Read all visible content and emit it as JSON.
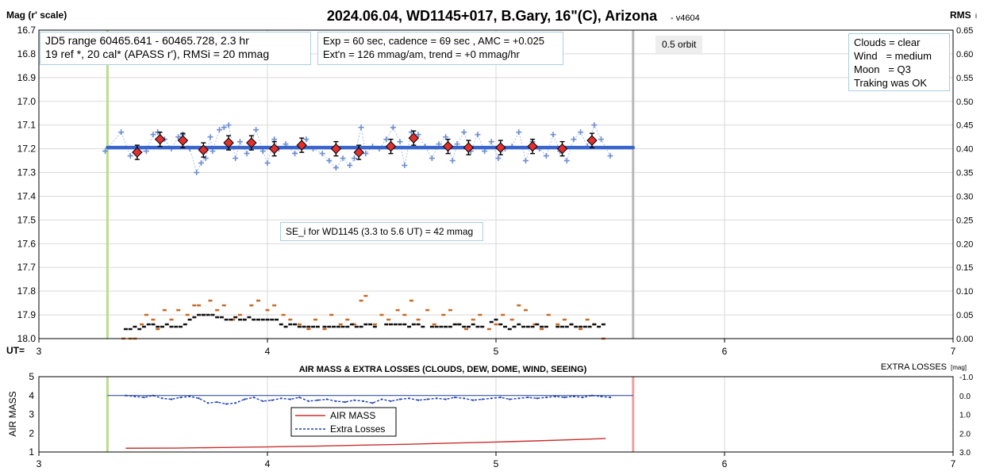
{
  "chart_data": [
    {
      "type": "scatter",
      "title": "2024.06.04, WD1145+017, B.Gary, 16\"(C), Arizona",
      "version_tag": "- v4604",
      "ylabel": "Mag (r' scale)",
      "y2label": "RMS",
      "y2label_suffix": "i",
      "x_axis_prefix": "UT=",
      "xlim": [
        3,
        7
      ],
      "ylim": [
        18.0,
        16.7
      ],
      "y2lim": [
        0.0,
        0.65
      ],
      "x_ticks": [
        3,
        4,
        5,
        6,
        7
      ],
      "y_ticks": [
        "16.7",
        "16.8",
        "16.9",
        "17.0",
        "17.1",
        "17.2",
        "17.3",
        "17.4",
        "17.5",
        "17.6",
        "17.7",
        "17.8",
        "17.9",
        "18.0"
      ],
      "y2_ticks": [
        "0.65",
        "0.60",
        "0.55",
        "0.50",
        "0.45",
        "0.40",
        "0.35",
        "0.30",
        "0.25",
        "0.20",
        "0.15",
        "0.10",
        "0.05",
        "0.00"
      ],
      "grid": true,
      "vertical_markers": [
        {
          "x": 3.3,
          "color": "#b9dc8c"
        },
        {
          "x": 5.6,
          "color": "#b8b8b8"
        }
      ],
      "model_line": {
        "x_start": 3.3,
        "x_end": 5.6,
        "y": 17.195,
        "color": "#3a66cc"
      },
      "series": [
        {
          "marker": "plus",
          "color": "#6f8fd0",
          "x": [
            3.29,
            3.36,
            3.4,
            3.43,
            3.47,
            3.5,
            3.52,
            3.55,
            3.58,
            3.61,
            3.63,
            3.66,
            3.69,
            3.71,
            3.73,
            3.75,
            3.76,
            3.79,
            3.81,
            3.83,
            3.86,
            3.88,
            3.91,
            3.93,
            3.95,
            3.98,
            4.0,
            4.03,
            4.05,
            4.08,
            4.12,
            4.15,
            4.17,
            4.2,
            4.24,
            4.27,
            4.3,
            4.33,
            4.36,
            4.38,
            4.41,
            4.43,
            4.46,
            4.49,
            4.52,
            4.55,
            4.58,
            4.6,
            4.63,
            4.66,
            4.69,
            4.72,
            4.75,
            4.78,
            4.81,
            4.83,
            4.86,
            4.89,
            4.92,
            4.95,
            4.98,
            5.01,
            5.04,
            5.07,
            5.1,
            5.13,
            5.16,
            5.19,
            5.22,
            5.25,
            5.28,
            5.31,
            5.34,
            5.37,
            5.4,
            5.43,
            5.46,
            5.5
          ],
          "y": [
            17.21,
            17.13,
            17.23,
            17.21,
            17.21,
            17.14,
            17.13,
            17.16,
            17.2,
            17.15,
            17.14,
            17.2,
            17.3,
            17.26,
            17.24,
            17.15,
            17.21,
            17.12,
            17.11,
            17.1,
            17.24,
            17.17,
            17.22,
            17.18,
            17.12,
            17.21,
            17.26,
            17.16,
            17.2,
            17.18,
            17.22,
            17.19,
            17.16,
            17.2,
            17.22,
            17.25,
            17.28,
            17.24,
            17.27,
            17.24,
            17.11,
            17.22,
            17.19,
            17.2,
            17.16,
            17.11,
            17.17,
            17.27,
            17.13,
            17.14,
            17.19,
            17.24,
            17.18,
            17.15,
            17.25,
            17.18,
            17.13,
            17.21,
            17.14,
            17.21,
            17.17,
            17.24,
            17.2,
            17.19,
            17.13,
            17.25,
            17.17,
            17.2,
            17.23,
            17.14,
            17.21,
            17.25,
            17.16,
            17.13,
            17.19,
            17.1,
            17.16,
            17.23
          ]
        },
        {
          "marker": "diamond",
          "color": "#e03030",
          "x": [
            3.43,
            3.53,
            3.63,
            3.72,
            3.83,
            3.93,
            4.03,
            4.15,
            4.3,
            4.4,
            4.54,
            4.64,
            4.79,
            4.88,
            5.02,
            5.16,
            5.29,
            5.42
          ],
          "y": [
            17.215,
            17.16,
            17.165,
            17.205,
            17.175,
            17.175,
            17.2,
            17.185,
            17.2,
            17.215,
            17.19,
            17.155,
            17.19,
            17.195,
            17.195,
            17.19,
            17.2,
            17.165
          ]
        },
        {
          "marker": "dash",
          "color": "#c76a28",
          "axis": "right",
          "x": [
            3.37,
            3.4,
            3.42,
            3.45,
            3.47,
            3.5,
            3.52,
            3.55,
            3.58,
            3.61,
            3.65,
            3.68,
            3.7,
            3.72,
            3.75,
            3.78,
            3.81,
            3.85,
            3.88,
            3.9,
            3.93,
            3.96,
            4.0,
            4.03,
            4.07,
            4.1,
            4.14,
            4.18,
            4.21,
            4.25,
            4.28,
            4.32,
            4.35,
            4.38,
            4.41,
            4.43,
            4.47,
            4.5,
            4.53,
            4.57,
            4.6,
            4.63,
            4.66,
            4.7,
            4.73,
            4.77,
            4.8,
            4.83,
            4.87,
            4.9,
            4.93,
            4.97,
            5.0,
            5.03,
            5.07,
            5.1,
            5.13,
            5.17,
            5.2,
            5.23,
            5.27,
            5.3,
            5.33,
            5.37,
            5.4,
            5.43,
            5.47
          ],
          "y": [
            0.0,
            0.0,
            0.0,
            0.03,
            0.05,
            0.04,
            0.02,
            0.06,
            0.04,
            0.06,
            0.05,
            0.07,
            0.07,
            0.05,
            0.08,
            0.06,
            0.07,
            0.04,
            0.05,
            0.04,
            0.07,
            0.08,
            0.06,
            0.07,
            0.05,
            0.04,
            0.03,
            0.02,
            0.04,
            0.02,
            0.05,
            0.03,
            0.04,
            0.03,
            0.08,
            0.09,
            0.03,
            0.05,
            0.04,
            0.06,
            0.05,
            0.08,
            0.04,
            0.06,
            0.03,
            0.05,
            0.06,
            0.03,
            0.02,
            0.04,
            0.05,
            0.02,
            0.03,
            0.05,
            0.04,
            0.07,
            0.06,
            0.03,
            0.02,
            0.05,
            0.03,
            0.04,
            0.03,
            0.02,
            0.04,
            0.03,
            0.0
          ]
        },
        {
          "marker": "dash",
          "color": "#111111",
          "axis": "right",
          "x": [
            3.38,
            3.4,
            3.42,
            3.44,
            3.46,
            3.48,
            3.5,
            3.52,
            3.54,
            3.56,
            3.58,
            3.6,
            3.62,
            3.64,
            3.66,
            3.68,
            3.7,
            3.72,
            3.74,
            3.76,
            3.78,
            3.8,
            3.82,
            3.84,
            3.86,
            3.88,
            3.9,
            3.92,
            3.94,
            3.96,
            3.98,
            4.0,
            4.02,
            4.04,
            4.06,
            4.08,
            4.1,
            4.12,
            4.14,
            4.16,
            4.18,
            4.2,
            4.22,
            4.25,
            4.27,
            4.29,
            4.31,
            4.33,
            4.35,
            4.37,
            4.39,
            4.41,
            4.43,
            4.45,
            4.47,
            4.52,
            4.54,
            4.56,
            4.58,
            4.6,
            4.62,
            4.64,
            4.66,
            4.68,
            4.72,
            4.74,
            4.76,
            4.78,
            4.8,
            4.82,
            4.84,
            4.86,
            4.88,
            4.9,
            4.92,
            4.94,
            4.98,
            5.0,
            5.02,
            5.04,
            5.06,
            5.08,
            5.1,
            5.12,
            5.14,
            5.16,
            5.18,
            5.2,
            5.22,
            5.27,
            5.29,
            5.31,
            5.33,
            5.35,
            5.37,
            5.39,
            5.41,
            5.43,
            5.45,
            5.47
          ],
          "y": [
            0.02,
            0.02,
            0.025,
            0.02,
            0.025,
            0.03,
            0.03,
            0.025,
            0.025,
            0.03,
            0.025,
            0.025,
            0.025,
            0.03,
            0.04,
            0.045,
            0.05,
            0.05,
            0.05,
            0.05,
            0.045,
            0.045,
            0.04,
            0.04,
            0.045,
            0.04,
            0.04,
            0.045,
            0.04,
            0.04,
            0.04,
            0.04,
            0.04,
            0.04,
            0.03,
            0.025,
            0.03,
            0.03,
            0.025,
            0.025,
            0.025,
            0.025,
            0.025,
            0.025,
            0.025,
            0.025,
            0.025,
            0.025,
            0.025,
            0.03,
            0.025,
            0.025,
            0.03,
            0.03,
            0.025,
            0.03,
            0.03,
            0.03,
            0.03,
            0.03,
            0.025,
            0.03,
            0.03,
            0.025,
            0.025,
            0.025,
            0.025,
            0.025,
            0.025,
            0.03,
            0.03,
            0.025,
            0.025,
            0.03,
            0.025,
            0.025,
            0.035,
            0.04,
            0.03,
            0.025,
            0.02,
            0.025,
            0.03,
            0.025,
            0.025,
            0.025,
            0.03,
            0.025,
            0.025,
            0.025,
            0.025,
            0.025,
            0.03,
            0.025,
            0.025,
            0.025,
            0.025,
            0.03,
            0.025,
            0.03
          ]
        }
      ],
      "annotations": {
        "jd_box": [
          "JD5 range 60465.641 - 60465.728, 2.3 hr",
          "19 ref *, 20 cal*  (APASS r'), RMSi = 20 mmag"
        ],
        "exp_box": [
          "Exp = 60 sec, cadence = 69 sec , AMC = +0.025",
          "Ext'n = 126 mmag/am, trend = +0 mmag/hr"
        ],
        "orbit_label": "0.5 orbit",
        "conditions_box": [
          "Clouds = clear",
          "Wind   = medium",
          "Moon   = Q3",
          "Traking was OK"
        ],
        "se_box": "SE_i for WD1145 (3.3 to 5.6 UT) = 42 mmag"
      }
    },
    {
      "type": "line",
      "title": "AIR MASS & EXTRA LOSSES (CLOUDS, DEW, DOME, WIND, SEEING)",
      "ylabel": "AIR MASS",
      "y2label": "EXTRA LOSSES",
      "y2label_suffix": "[mag]",
      "xlim": [
        3,
        7
      ],
      "ylim": [
        1,
        5
      ],
      "y2lim": [
        3.0,
        -1.0
      ],
      "x_ticks": [
        3,
        4,
        5,
        6,
        7
      ],
      "y_ticks": [
        "5",
        "4",
        "3",
        "2",
        "1"
      ],
      "y2_ticks": [
        "-1.0",
        "0.0",
        "1.0",
        "2.0",
        "3.0"
      ],
      "vertical_markers": [
        {
          "x": 3.3,
          "color": "#b9dc8c"
        },
        {
          "x": 5.6,
          "color": "#f0a0a0"
        }
      ],
      "reference_line": {
        "y2": 0.0,
        "color": "#1f3f8f"
      },
      "legend": [
        "AIR MASS",
        "Extra Losses"
      ],
      "series": [
        {
          "name": "AIR MASS",
          "color": "#c83030",
          "style": "solid",
          "x": [
            3.38,
            3.6,
            3.8,
            4.0,
            4.2,
            4.4,
            4.6,
            4.8,
            5.0,
            5.2,
            5.4,
            5.48
          ],
          "y": [
            1.2,
            1.21,
            1.24,
            1.27,
            1.31,
            1.36,
            1.41,
            1.47,
            1.53,
            1.6,
            1.68,
            1.72
          ]
        },
        {
          "name": "Extra Losses",
          "color": "#1f3fb5",
          "style": "dashed",
          "axis": "right",
          "x": [
            3.38,
            3.42,
            3.46,
            3.5,
            3.54,
            3.58,
            3.62,
            3.66,
            3.7,
            3.74,
            3.78,
            3.82,
            3.86,
            3.9,
            3.94,
            3.98,
            4.02,
            4.06,
            4.1,
            4.14,
            4.18,
            4.22,
            4.26,
            4.3,
            4.34,
            4.38,
            4.42,
            4.46,
            4.5,
            4.54,
            4.58,
            4.62,
            4.66,
            4.7,
            4.74,
            4.78,
            4.82,
            4.86,
            4.9,
            4.94,
            4.98,
            5.02,
            5.06,
            5.1,
            5.14,
            5.18,
            5.22,
            5.26,
            5.3,
            5.34,
            5.38,
            5.42,
            5.46,
            5.5
          ],
          "y": [
            0.0,
            0.05,
            0.1,
            0.0,
            0.15,
            0.2,
            0.1,
            0.05,
            0.15,
            0.4,
            0.35,
            0.45,
            0.4,
            0.2,
            0.1,
            0.3,
            0.25,
            0.15,
            0.2,
            0.1,
            0.3,
            0.25,
            0.2,
            0.3,
            0.35,
            0.25,
            0.3,
            0.4,
            0.2,
            0.3,
            0.2,
            0.15,
            0.25,
            0.2,
            0.15,
            0.2,
            0.1,
            0.15,
            0.25,
            0.2,
            0.15,
            0.1,
            0.2,
            0.15,
            0.1,
            0.15,
            0.1,
            0.05,
            0.1,
            0.05,
            0.1,
            0.0,
            0.05,
            0.1
          ]
        }
      ]
    }
  ]
}
